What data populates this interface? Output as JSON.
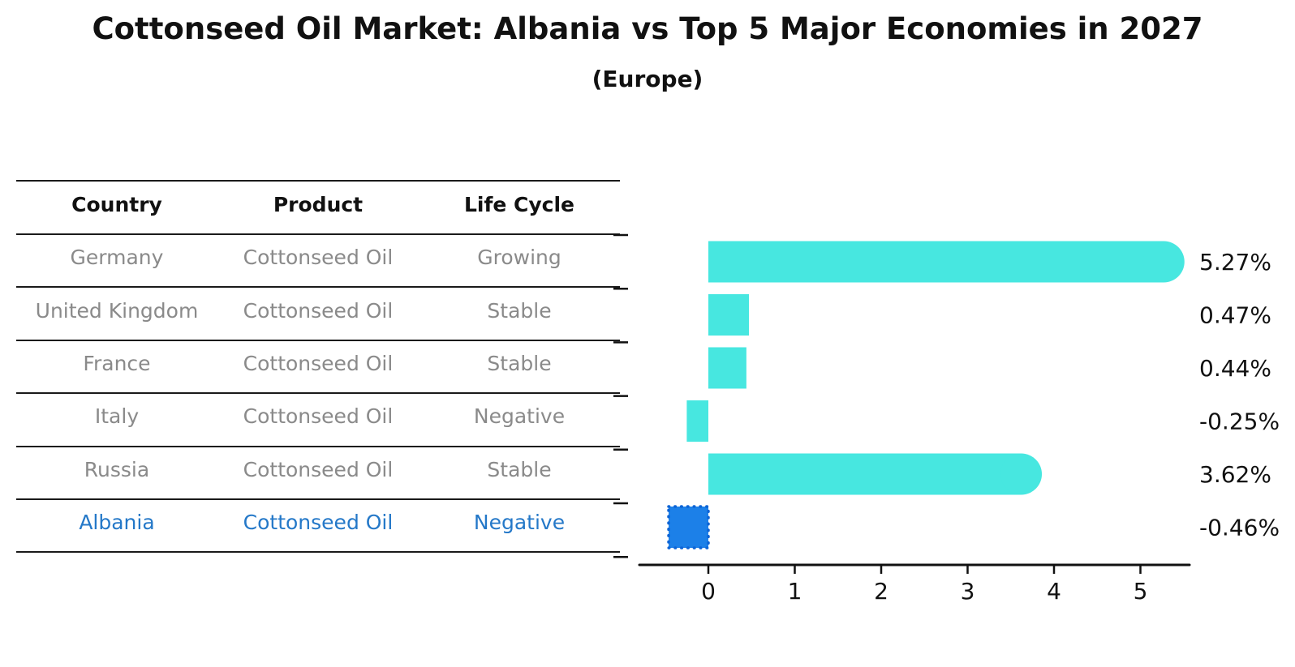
{
  "title": "Cottonseed Oil Market: Albania vs Top 5 Major Economies in 2027",
  "subtitle": "(Europe)",
  "table": {
    "headers": [
      "Country",
      "Product",
      "Life Cycle"
    ],
    "rows": [
      {
        "country": "Germany",
        "product": "Cottonseed Oil",
        "life_cycle": "Growing",
        "highlight": false
      },
      {
        "country": "United Kingdom",
        "product": "Cottonseed Oil",
        "life_cycle": "Stable",
        "highlight": false
      },
      {
        "country": "France",
        "product": "Cottonseed Oil",
        "life_cycle": "Stable",
        "highlight": false
      },
      {
        "country": "Italy",
        "product": "Cottonseed Oil",
        "life_cycle": "Negative",
        "highlight": false
      },
      {
        "country": "Russia",
        "product": "Cottonseed Oil",
        "life_cycle": "Stable",
        "highlight": false
      },
      {
        "country": "Albania",
        "product": "Cottonseed Oil",
        "life_cycle": "Negative",
        "highlight": true
      }
    ]
  },
  "chart_data": {
    "type": "bar",
    "orientation": "horizontal",
    "categories": [
      "Germany",
      "United Kingdom",
      "France",
      "Italy",
      "Russia",
      "Albania"
    ],
    "values": [
      5.27,
      0.47,
      0.44,
      -0.25,
      3.62,
      -0.46
    ],
    "value_labels": [
      "5.27%",
      "0.47%",
      "0.44%",
      "-0.25%",
      "3.62%",
      "-0.46%"
    ],
    "x_ticks": [
      "0",
      "1",
      "2",
      "3",
      "4",
      "5"
    ],
    "xlim": [
      -0.8,
      5.57
    ],
    "grid": false,
    "legend": "none",
    "highlight_index": 5,
    "bar_color": "#47e7e0",
    "highlight_bar_color": "#1c80e8",
    "highlight_border_color": "#0d64d6",
    "highlight_text_color": "#2478c8",
    "axis_color": "#111111",
    "row_text_color": "#8a8a8a"
  }
}
